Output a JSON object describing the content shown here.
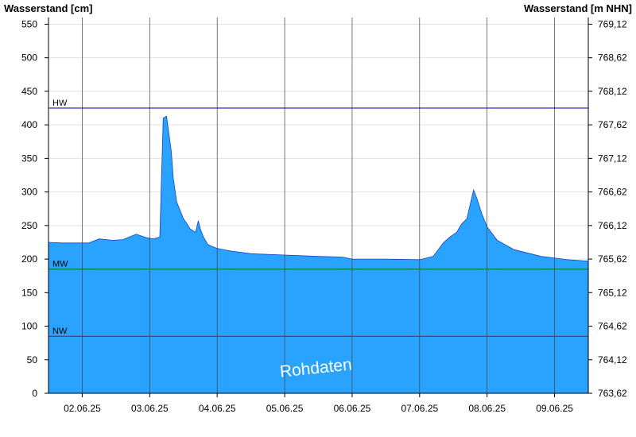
{
  "chart_data": {
    "type": "area",
    "ylabel_left": "Wasserstand [cm]",
    "ylabel_right": "Wasserstand [m NHN]",
    "left_axis": {
      "ylim": [
        0,
        560
      ],
      "ticks": [
        "0",
        "50",
        "100",
        "150",
        "200",
        "250",
        "300",
        "350",
        "400",
        "450",
        "500",
        "550"
      ]
    },
    "right_axis": {
      "ticks": [
        "763,62",
        "764,12",
        "764,62",
        "765,12",
        "765,62",
        "766,12",
        "766,62",
        "767,12",
        "767,62",
        "768,12",
        "768,62",
        "769,12"
      ]
    },
    "x_range_days": [
      1.5,
      9.5
    ],
    "x_tick_labels": [
      "02.06.25",
      "03.06.25",
      "04.06.25",
      "05.06.25",
      "06.06.25",
      "07.06.25",
      "08.06.25",
      "09.06.25"
    ],
    "grid": {
      "horizontal": true,
      "vertical_day_lines": true
    },
    "reference_lines": [
      {
        "label": "HW",
        "value": 425,
        "color": "#000099"
      },
      {
        "label": "MW",
        "value": 185,
        "color": "#008000"
      },
      {
        "label": "NW",
        "value": 85,
        "color": "#cc0000"
      }
    ],
    "series": [
      {
        "color": "#29a3ff",
        "x": [
          1.5,
          1.7,
          2.1,
          2.25,
          2.45,
          2.6,
          2.8,
          2.95,
          3.05,
          3.15,
          3.2,
          3.25,
          3.32,
          3.35,
          3.4,
          3.5,
          3.55,
          3.6,
          3.68,
          3.72,
          3.75,
          3.8,
          3.86,
          3.92,
          4.0,
          4.2,
          4.5,
          5.0,
          5.5,
          5.85,
          6.0,
          6.5,
          7.0,
          7.2,
          7.35,
          7.45,
          7.55,
          7.62,
          7.7,
          7.8,
          7.85,
          7.92,
          8.0,
          8.15,
          8.4,
          8.8,
          9.2,
          9.5
        ],
        "y": [
          225,
          224,
          224,
          230,
          228,
          229,
          237,
          232,
          230,
          233,
          410,
          413,
          360,
          320,
          285,
          260,
          253,
          245,
          240,
          257,
          245,
          232,
          222,
          219,
          216,
          212,
          208,
          206,
          204,
          203,
          200,
          200,
          199,
          204,
          224,
          233,
          240,
          252,
          260,
          303,
          290,
          268,
          248,
          228,
          214,
          204,
          199,
          197
        ]
      }
    ],
    "annotation": "Rohdaten"
  }
}
